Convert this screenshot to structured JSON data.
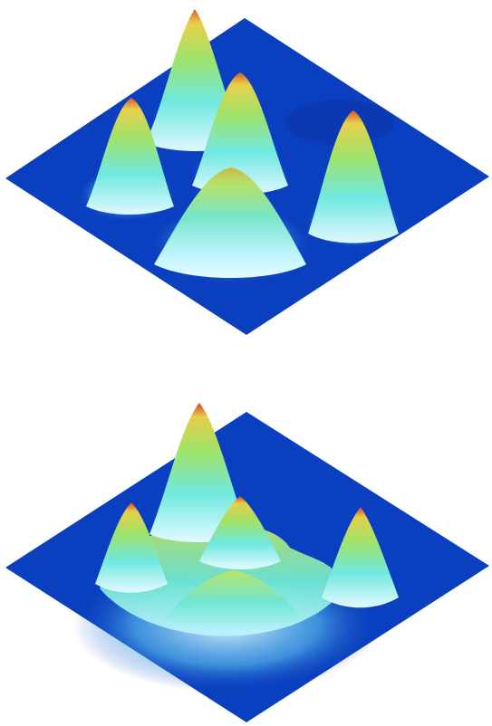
{
  "figure": {
    "panels": [
      {
        "id": "top",
        "peaks": 5,
        "colormap": "blue-cyan-green-yellow-red",
        "base_color": "#0a3fbf"
      },
      {
        "id": "bottom",
        "peaks": 5,
        "colormap": "blue-cyan-green-yellow-red",
        "base_color": "#0a3fbf"
      }
    ],
    "colors": {
      "base": "#0a3fbf",
      "low": "#1f7fe0",
      "mid_low": "#7fe6f2",
      "mid": "#7fe08a",
      "high": "#e6e04a",
      "peak": "#e04a2a"
    }
  }
}
